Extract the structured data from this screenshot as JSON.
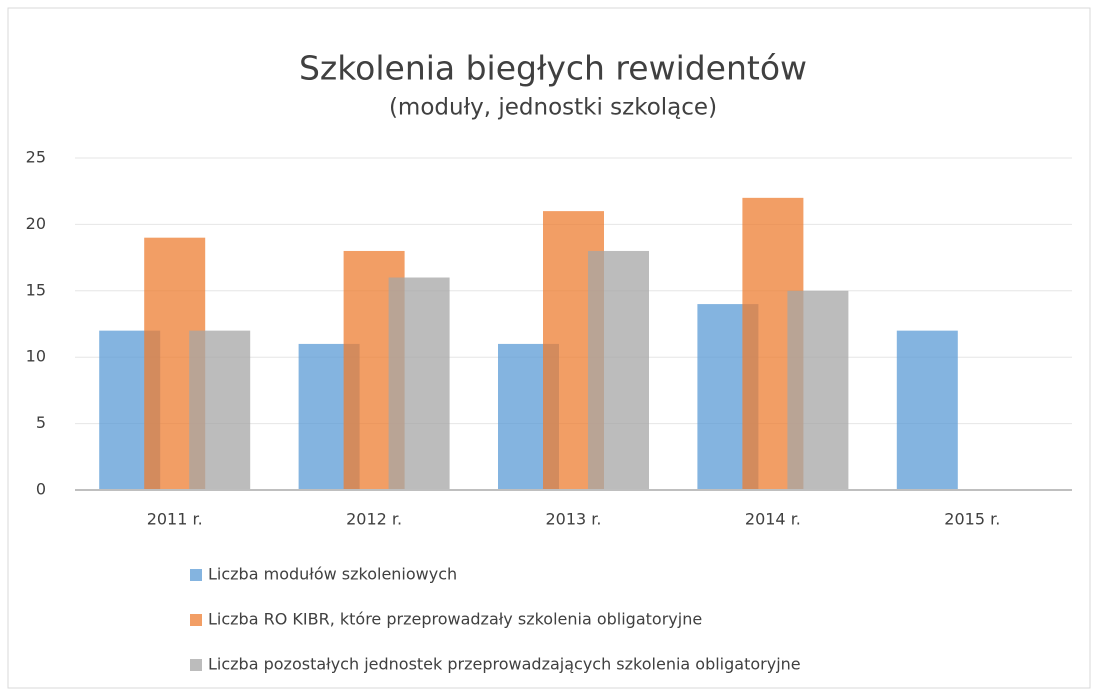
{
  "chart_data": {
    "type": "bar",
    "title": "Szkolenia biegłych rewidentów",
    "subtitle": "(moduły, jednostki szkolące)",
    "categories": [
      "2011 r.",
      "2012 r.",
      "2013 r.",
      "2014 r.",
      "2015 r."
    ],
    "series": [
      {
        "name": "Liczba modułów szkoleniowych",
        "color": "#5b9bd5",
        "values": [
          12,
          11,
          11,
          14,
          12
        ]
      },
      {
        "name": "Liczba RO KIBR, które przeprowadzały szkolenia obligatoryjne",
        "color": "#ed7d31",
        "values": [
          19,
          18,
          21,
          22,
          null
        ]
      },
      {
        "name": "Liczba pozostałych jednostek przeprowadzających szkolenia obligatoryjne",
        "color": "#a5a5a5",
        "values": [
          12,
          16,
          18,
          15,
          null
        ]
      }
    ],
    "ylim": [
      0,
      25
    ],
    "yticks": [
      0,
      5,
      10,
      15,
      20,
      25
    ],
    "grid": true,
    "legend": "bottom"
  }
}
